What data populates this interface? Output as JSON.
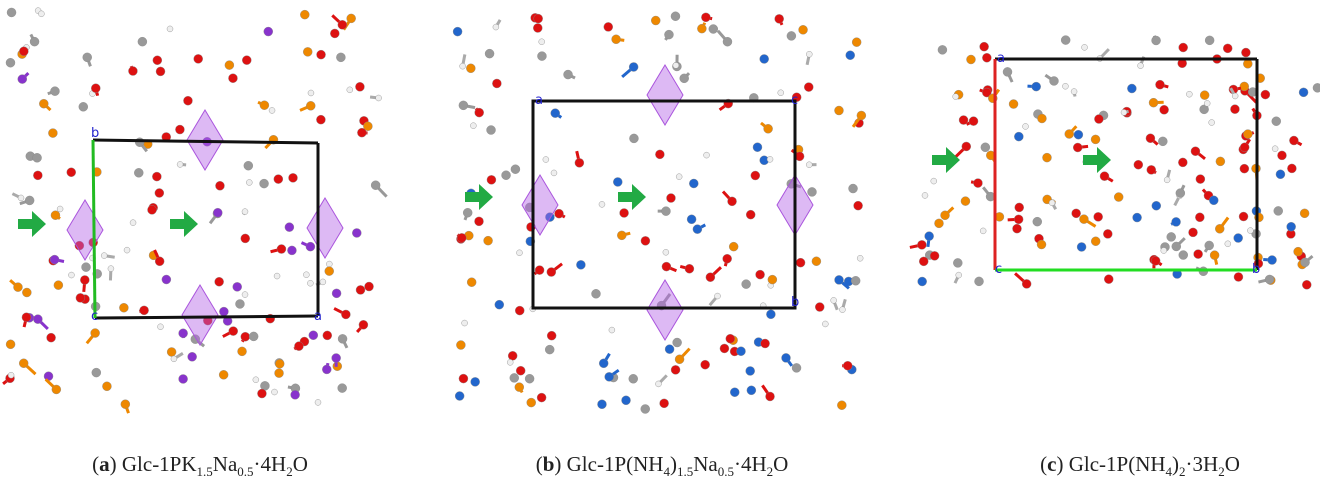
{
  "panels": [
    {
      "cell_labels": [
        "b",
        "c",
        "a"
      ],
      "caption": [
        {
          "text": "("
        },
        {
          "text": "a",
          "bold": true
        },
        {
          "text": ") Glc-1PK"
        },
        {
          "text": "1.5",
          "sub": true
        },
        {
          "text": "Na"
        },
        {
          "text": "0.5",
          "sub": true
        },
        {
          "text": "·4H"
        },
        {
          "text": "2",
          "sub": true
        },
        {
          "text": "O"
        }
      ]
    },
    {
      "cell_labels": [
        "a",
        "c",
        "b"
      ],
      "caption": [
        {
          "text": "("
        },
        {
          "text": "b",
          "bold": true
        },
        {
          "text": ") Glc-1P(NH"
        },
        {
          "text": "4",
          "sub": true
        },
        {
          "text": ")"
        },
        {
          "text": "1.5",
          "sub": true
        },
        {
          "text": "Na"
        },
        {
          "text": "0.5",
          "sub": true
        },
        {
          "text": "·4H"
        },
        {
          "text": "2",
          "sub": true
        },
        {
          "text": "O"
        }
      ]
    },
    {
      "cell_labels": [
        "a",
        "c",
        "b"
      ],
      "caption": [
        {
          "text": "("
        },
        {
          "text": "c",
          "bold": true
        },
        {
          "text": ") Glc-1P(NH"
        },
        {
          "text": "4",
          "sub": true
        },
        {
          "text": ")"
        },
        {
          "text": "2",
          "sub": true
        },
        {
          "text": "·3H"
        },
        {
          "text": "2",
          "sub": true
        },
        {
          "text": "O"
        }
      ]
    }
  ]
}
